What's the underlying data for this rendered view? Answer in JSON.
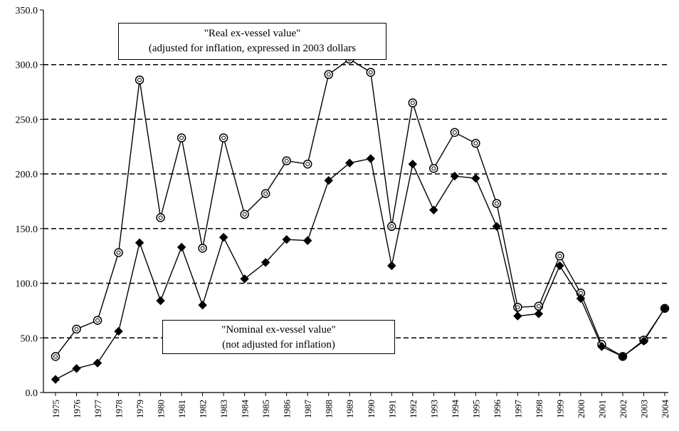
{
  "chart_data": {
    "type": "line",
    "title": "",
    "xlabel": "",
    "ylabel": "",
    "ylim": [
      0,
      350
    ],
    "yticks": [
      "0.0",
      "50.0",
      "100.0",
      "150.0",
      "200.0",
      "250.0",
      "300.0",
      "350.0"
    ],
    "grid": "horizontal dashed",
    "categories": [
      "1975",
      "1976",
      "1977",
      "1978",
      "1979",
      "1980",
      "1981",
      "1982",
      "1983",
      "1984",
      "1985",
      "1986",
      "1987",
      "1988",
      "1989",
      "1990",
      "1991",
      "1992",
      "1993",
      "1994",
      "1995",
      "1996",
      "1997",
      "1998",
      "1999",
      "2000",
      "2001",
      "2002",
      "2003",
      "2004"
    ],
    "series": [
      {
        "marker": "open-circle",
        "values": [
          33,
          58,
          66,
          128,
          286,
          160,
          233,
          132,
          233,
          163,
          182,
          212,
          209,
          291,
          305,
          293,
          152,
          265,
          205,
          238,
          228,
          173,
          78,
          79,
          125,
          91,
          44,
          33,
          48,
          77
        ]
      },
      {
        "marker": "filled-diamond",
        "values": [
          12,
          22,
          27,
          56,
          137,
          84,
          133,
          80,
          142,
          104,
          119,
          140,
          139,
          194,
          210,
          214,
          116,
          209,
          167,
          198,
          196,
          152,
          70,
          72,
          116,
          86,
          42,
          33,
          47,
          77
        ]
      }
    ],
    "annotations": [
      {
        "line1": "\"Real ex-vessel value\"",
        "line2": "(adjusted for inflation, expressed in 2003 dollars"
      },
      {
        "line1": "\"Nominal ex-vessel value\"",
        "line2": "(not adjusted for inflation)"
      }
    ]
  }
}
